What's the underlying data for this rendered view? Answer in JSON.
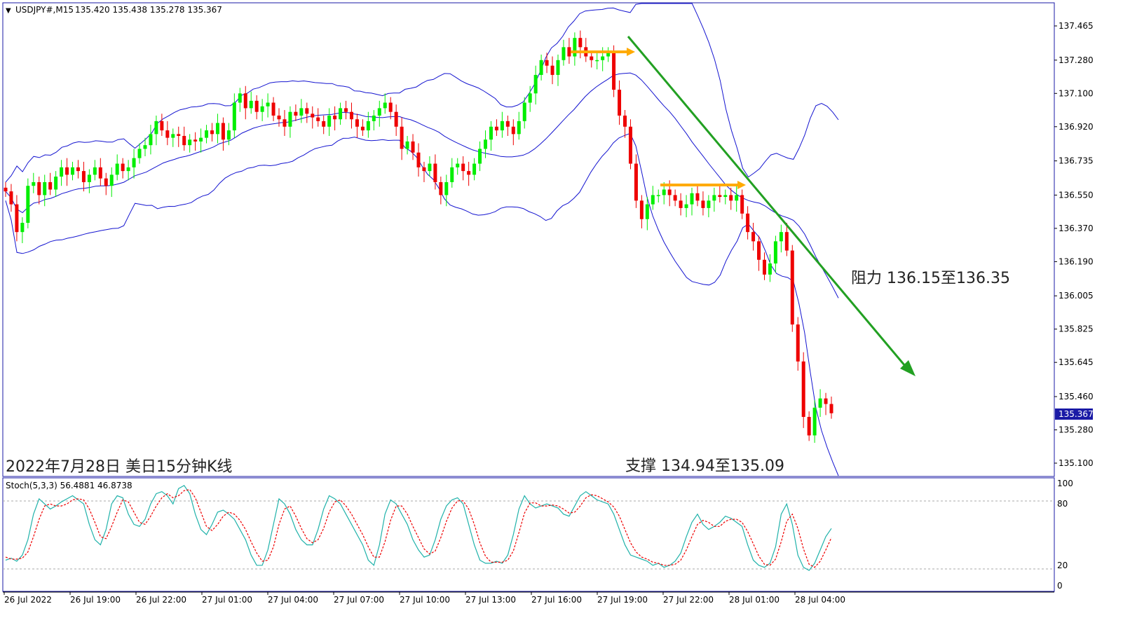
{
  "header": {
    "marker": "▼",
    "symbol": "USDJPY#,M15",
    "ohlc": "135.420 135.438 135.278 135.367"
  },
  "annotations": {
    "date_title": "2022年7月28日 美日15分钟K线",
    "resistance": "阻力 136.15至136.35",
    "support": "支撑 134.94至135.09"
  },
  "current_price": "135.367",
  "stoch": {
    "label": "Stoch(5,3,3) 56.4881 46.8738"
  },
  "colors": {
    "bull": "#00ee00",
    "bear": "#ee0000",
    "band": "#1414d0",
    "trend": "#22a022",
    "arrow": "#ffaa00",
    "stoch_main": "#20b2aa",
    "stoch_signal": "#ee0000"
  },
  "chart_data": [
    {
      "type": "candlestick",
      "ylim": [
        135.0,
        137.6
      ],
      "yticks": [
        "137.465",
        "137.280",
        "137.100",
        "136.920",
        "136.735",
        "136.550",
        "136.370",
        "136.190",
        "136.005",
        "135.825",
        "135.645",
        "135.460",
        "135.280",
        "135.100"
      ],
      "xticks": [
        "26 Jul 2022",
        "26 Jul 19:00",
        "26 Jul 22:00",
        "27 Jul 01:00",
        "27 Jul 04:00",
        "27 Jul 07:00",
        "27 Jul 10:00",
        "27 Jul 13:00",
        "27 Jul 16:00",
        "27 Jul 19:00",
        "27 Jul 22:00",
        "28 Jul 01:00",
        "28 Jul 04:00"
      ],
      "closes": [
        136.57,
        136.5,
        136.35,
        136.4,
        136.6,
        136.62,
        136.55,
        136.62,
        136.58,
        136.65,
        136.7,
        136.66,
        136.7,
        136.68,
        136.62,
        136.66,
        136.7,
        136.64,
        136.6,
        136.66,
        136.72,
        136.68,
        136.7,
        136.75,
        136.8,
        136.82,
        136.88,
        136.95,
        136.9,
        136.86,
        136.88,
        136.87,
        136.82,
        136.85,
        136.84,
        136.86,
        136.9,
        136.88,
        136.94,
        136.85,
        136.9,
        137.05,
        137.1,
        137.02,
        137.06,
        137.0,
        137.03,
        137.05,
        136.98,
        136.96,
        136.92,
        137.0,
        136.98,
        137.02,
        136.99,
        136.97,
        136.95,
        136.92,
        136.98,
        136.96,
        137.02,
        137.0,
        136.96,
        136.92,
        136.9,
        136.95,
        136.98,
        137.02,
        137.05,
        137.0,
        136.92,
        136.8,
        136.84,
        136.78,
        136.7,
        136.68,
        136.72,
        136.62,
        136.55,
        136.62,
        136.7,
        136.72,
        136.68,
        136.66,
        136.72,
        136.8,
        136.85,
        136.92,
        136.9,
        136.95,
        136.92,
        136.88,
        136.95,
        137.05,
        137.1,
        137.2,
        137.28,
        137.25,
        137.2,
        137.28,
        137.35,
        137.3,
        137.4,
        137.35,
        137.3,
        137.28,
        137.28,
        137.3,
        137.32,
        137.12,
        136.98,
        136.92,
        136.72,
        136.52,
        136.42,
        136.5,
        136.55,
        136.55,
        136.58,
        136.55,
        136.52,
        136.48,
        136.5,
        136.56,
        136.52,
        136.48,
        136.52,
        136.55,
        136.54,
        136.55,
        136.52,
        136.55,
        136.45,
        136.35,
        136.3,
        136.2,
        136.12,
        136.18,
        136.3,
        136.35,
        136.25,
        135.85,
        135.65,
        135.35,
        135.25,
        135.4,
        135.45,
        135.42,
        135.37
      ],
      "upper_band_note": "Bollinger bands drawn from closes",
      "lower_band_note": ""
    },
    {
      "type": "line",
      "ylim": [
        0,
        100
      ],
      "yticks": [
        "100",
        "80",
        "20",
        "0"
      ],
      "levels": [
        80,
        20
      ],
      "series": [
        {
          "key": "main",
          "values": [
            25,
            27,
            24,
            30,
            45,
            70,
            85,
            80,
            75,
            78,
            82,
            85,
            88,
            84,
            80,
            60,
            45,
            40,
            55,
            80,
            88,
            86,
            70,
            60,
            58,
            65,
            80,
            90,
            92,
            88,
            80,
            95,
            98,
            90,
            70,
            55,
            50,
            60,
            72,
            74,
            70,
            65,
            55,
            45,
            30,
            20,
            20,
            35,
            60,
            85,
            80,
            70,
            55,
            45,
            40,
            40,
            55,
            75,
            88,
            85,
            80,
            70,
            60,
            50,
            40,
            25,
            20,
            40,
            70,
            84,
            80,
            70,
            60,
            45,
            35,
            28,
            30,
            45,
            65,
            78,
            84,
            86,
            80,
            60,
            40,
            25,
            22,
            22,
            24,
            22,
            30,
            50,
            75,
            88,
            80,
            76,
            78,
            80,
            78,
            76,
            70,
            68,
            78,
            88,
            92,
            88,
            84,
            82,
            80,
            70,
            55,
            40,
            30,
            28,
            26,
            24,
            20,
            22,
            18,
            20,
            24,
            32,
            48,
            62,
            70,
            60,
            55,
            58,
            62,
            68,
            66,
            62,
            58,
            40,
            25,
            20,
            18,
            22,
            38,
            70,
            80,
            60,
            30,
            18,
            15,
            22,
            35,
            48,
            56
          ]
        },
        {
          "key": "signal",
          "values": [
            28,
            26,
            26,
            27,
            33,
            48,
            65,
            78,
            80,
            78,
            78,
            80,
            84,
            85,
            84,
            75,
            62,
            48,
            46,
            58,
            72,
            84,
            82,
            72,
            62,
            60,
            68,
            78,
            86,
            90,
            86,
            88,
            93,
            94,
            86,
            72,
            58,
            54,
            60,
            68,
            72,
            70,
            64,
            55,
            43,
            32,
            24,
            25,
            38,
            60,
            75,
            78,
            68,
            56,
            46,
            42,
            45,
            56,
            72,
            82,
            84,
            78,
            70,
            60,
            50,
            38,
            28,
            28,
            43,
            64,
            78,
            78,
            70,
            58,
            47,
            36,
            31,
            34,
            47,
            63,
            76,
            83,
            83,
            75,
            60,
            42,
            29,
            23,
            23,
            23,
            25,
            34,
            52,
            71,
            81,
            81,
            78,
            78,
            79,
            78,
            75,
            71,
            72,
            78,
            86,
            89,
            88,
            85,
            82,
            77,
            68,
            55,
            42,
            33,
            28,
            26,
            23,
            22,
            20,
            20,
            21,
            25,
            35,
            48,
            60,
            64,
            62,
            58,
            58,
            63,
            65,
            65,
            62,
            53,
            41,
            29,
            21,
            20,
            26,
            43,
            63,
            70,
            56,
            36,
            21,
            18,
            24,
            35,
            47
          ]
        }
      ]
    }
  ]
}
